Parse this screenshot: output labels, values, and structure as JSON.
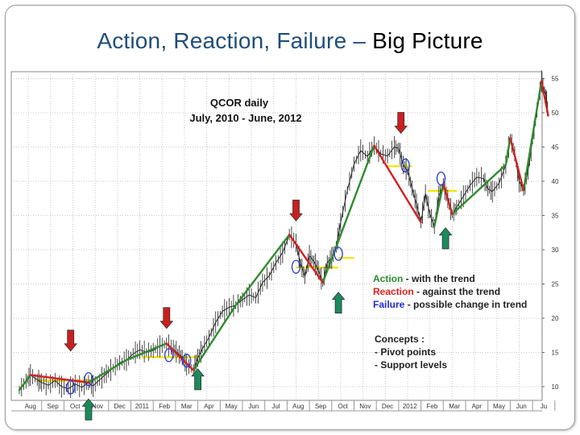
{
  "slide": {
    "title_part1": "Action, Reaction, Failure –",
    "title_part2": "Big Picture"
  },
  "chart_data": {
    "type": "line",
    "title": "QCOR daily",
    "subtitle": "July, 2010 - June, 2012",
    "x_tick_labels": [
      "Aug",
      "Sep",
      "Oct",
      "Nov",
      "Dec",
      "2011",
      "Feb",
      "Mar",
      "Apr",
      "May",
      "Jun",
      "Jul",
      "Aug",
      "Sep",
      "Oct",
      "Nov",
      "Dec",
      "2012",
      "Feb",
      "Mar",
      "Apr",
      "May",
      "Jun",
      "Ju"
    ],
    "y_tick_labels": [
      "10",
      "15",
      "20",
      "25",
      "30",
      "35",
      "40",
      "45",
      "50",
      "55"
    ],
    "ylim": [
      8,
      56
    ],
    "grid": true,
    "y_axis_side": "right",
    "series": [
      {
        "color": "#1c1c1c",
        "points": [
          [
            0,
            9.5
          ],
          [
            0.3,
            10.8
          ],
          [
            0.5,
            11.7
          ],
          [
            0.8,
            11
          ],
          [
            1,
            10.6
          ],
          [
            1.3,
            10.2
          ],
          [
            1.6,
            10.9
          ],
          [
            1.9,
            10
          ],
          [
            2.2,
            9.7
          ],
          [
            2.5,
            10.4
          ],
          [
            2.8,
            9.9
          ],
          [
            3.1,
            10.6
          ],
          [
            3.3,
            10.1
          ],
          [
            3.6,
            11
          ],
          [
            3.9,
            11.9
          ],
          [
            4.2,
            12.7
          ],
          [
            4.5,
            13.5
          ],
          [
            4.8,
            13.9
          ],
          [
            5.1,
            14.8
          ],
          [
            5.4,
            15.4
          ],
          [
            5.7,
            15
          ],
          [
            6,
            15.3
          ],
          [
            6.3,
            15.9
          ],
          [
            6.6,
            16.3
          ],
          [
            6.9,
            15.5
          ],
          [
            7.1,
            14.9
          ],
          [
            7.3,
            14.3
          ],
          [
            7.5,
            13.2
          ],
          [
            7.8,
            12.4
          ],
          [
            8,
            14.2
          ],
          [
            8.2,
            15.5
          ],
          [
            8.5,
            17.2
          ],
          [
            8.8,
            19.4
          ],
          [
            9.1,
            21
          ],
          [
            9.4,
            21.6
          ],
          [
            9.7,
            21.9
          ],
          [
            10,
            22.7
          ],
          [
            10.3,
            23.4
          ],
          [
            10.6,
            23
          ],
          [
            10.9,
            25.2
          ],
          [
            11.2,
            26.2
          ],
          [
            11.5,
            28.1
          ],
          [
            11.8,
            29.6
          ],
          [
            12.1,
            32.2
          ],
          [
            12.4,
            31
          ],
          [
            12.6,
            28
          ],
          [
            12.8,
            26.1
          ],
          [
            13,
            29.1
          ],
          [
            13.2,
            28.3
          ],
          [
            13.4,
            27
          ],
          [
            13.6,
            25.2
          ],
          [
            13.8,
            28.1
          ],
          [
            14,
            28.8
          ],
          [
            14.2,
            30.4
          ],
          [
            14.4,
            34
          ],
          [
            14.7,
            38.7
          ],
          [
            15,
            42.5
          ],
          [
            15.3,
            44.5
          ],
          [
            15.6,
            43.6
          ],
          [
            15.9,
            45.2
          ],
          [
            16.2,
            44
          ],
          [
            16.5,
            43.7
          ],
          [
            16.8,
            45
          ],
          [
            17,
            44.8
          ],
          [
            17.2,
            42.4
          ],
          [
            17.4,
            41.5
          ],
          [
            17.6,
            39
          ],
          [
            17.8,
            36.6
          ],
          [
            18,
            34
          ],
          [
            18.2,
            38.2
          ],
          [
            18.4,
            35.2
          ],
          [
            18.6,
            33.4
          ],
          [
            18.8,
            37.8
          ],
          [
            19,
            39.6
          ],
          [
            19.2,
            37.4
          ],
          [
            19.4,
            35.2
          ],
          [
            19.6,
            36.2
          ],
          [
            19.9,
            37.8
          ],
          [
            20.2,
            39.4
          ],
          [
            20.5,
            40.6
          ],
          [
            20.8,
            40.4
          ],
          [
            21,
            38.9
          ],
          [
            21.2,
            38.5
          ],
          [
            21.5,
            39.7
          ],
          [
            21.8,
            42.4
          ],
          [
            22,
            46.3
          ],
          [
            22.2,
            44
          ],
          [
            22.4,
            40
          ],
          [
            22.6,
            38.7
          ],
          [
            22.8,
            41.6
          ],
          [
            23,
            46
          ],
          [
            23.2,
            50.4
          ],
          [
            23.4,
            54.6
          ],
          [
            23.6,
            52.6
          ],
          [
            23.7,
            49.6
          ]
        ]
      },
      {
        "name": "Action - with the trend",
        "color": "#2e8b2e",
        "segments": [
          [
            [
              0,
              9.5
            ],
            [
              0.5,
              11.7
            ]
          ],
          [
            [
              3.1,
              10.6
            ],
            [
              4.8,
              13.9
            ],
            [
              6.6,
              16.3
            ]
          ],
          [
            [
              7.8,
              12.4
            ],
            [
              9.7,
              21.9
            ],
            [
              12.1,
              32.2
            ]
          ],
          [
            [
              13.6,
              25.2
            ],
            [
              15.9,
              45.2
            ]
          ],
          [
            [
              18.6,
              33.4
            ],
            [
              19,
              39.6
            ]
          ],
          [
            [
              19.4,
              35.2
            ],
            [
              21.8,
              42.4
            ],
            [
              22,
              46.3
            ]
          ],
          [
            [
              22.6,
              38.7
            ],
            [
              23.4,
              54.6
            ]
          ]
        ]
      },
      {
        "name": "Reaction - against the trend",
        "color": "#d42020",
        "segments": [
          [
            [
              0.5,
              11.7
            ],
            [
              3.1,
              10.6
            ]
          ],
          [
            [
              6.6,
              16.3
            ],
            [
              7.8,
              12.4
            ]
          ],
          [
            [
              12.1,
              32.2
            ],
            [
              13.6,
              25.2
            ]
          ],
          [
            [
              15.9,
              45.2
            ],
            [
              18,
              34
            ]
          ],
          [
            [
              19,
              39.6
            ],
            [
              19.4,
              35.2
            ]
          ],
          [
            [
              22,
              46.3
            ],
            [
              22.6,
              38.7
            ]
          ],
          [
            [
              23.4,
              54.6
            ],
            [
              23.7,
              49.6
            ]
          ]
        ]
      }
    ],
    "support_levels": [
      {
        "x": [
          0.8,
          3.4
        ],
        "y": 10.9,
        "color": "#f2e200"
      },
      {
        "x": [
          5.5,
          8.0
        ],
        "y": 14.3,
        "color": "#f2e200"
      },
      {
        "x": [
          12.4,
          14.3
        ],
        "y": 27.4,
        "color": "#f2e200"
      },
      {
        "x": [
          14.3,
          15.0
        ],
        "y": 28.8,
        "color": "#f2e200"
      },
      {
        "x": [
          16.5,
          17.6
        ],
        "y": 42.2,
        "color": "#f2e200"
      },
      {
        "x": [
          18.3,
          19.6
        ],
        "y": 38.6,
        "color": "#f2e200"
      }
    ],
    "pivot_points": [
      {
        "x": 2.3,
        "y": 9.9
      },
      {
        "x": 3.1,
        "y": 11.1
      },
      {
        "x": 6.7,
        "y": 14.6
      },
      {
        "x": 7.5,
        "y": 13.8
      },
      {
        "x": 12.4,
        "y": 27.5
      },
      {
        "x": 14.3,
        "y": 29.4
      },
      {
        "x": 17.3,
        "y": 42.3
      },
      {
        "x": 18.9,
        "y": 40.4
      }
    ],
    "arrows_down": [
      {
        "x": 2.3,
        "y": 15.2,
        "color": "#cc1f1f"
      },
      {
        "x": 6.6,
        "y": 18.5,
        "color": "#cc1f1f"
      },
      {
        "x": 12.4,
        "y": 34.2,
        "color": "#cc1f1f"
      },
      {
        "x": 17.1,
        "y": 47.0,
        "color": "#cc1f1f"
      }
    ],
    "arrows_up": [
      {
        "x": 3.1,
        "y": 8.2,
        "color": "#1a8a5c"
      },
      {
        "x": 8.0,
        "y": 12.6,
        "color": "#1a8a5c"
      },
      {
        "x": 14.3,
        "y": 23.8,
        "color": "#1a8a5c"
      },
      {
        "x": 19.1,
        "y": 33.2,
        "color": "#1a8a5c"
      }
    ],
    "legend": [
      {
        "label": "Action",
        "color": "#2e8b2e",
        "text": " - with the trend"
      },
      {
        "label": "Reaction",
        "color": "#e02020",
        "text": " - against the trend"
      },
      {
        "label": "Failure",
        "color": "#1f2ad0",
        "text": " - possible change in trend"
      }
    ],
    "notes": [
      "Concepts :",
      "- Pivot points",
      "- Support levels"
    ]
  }
}
